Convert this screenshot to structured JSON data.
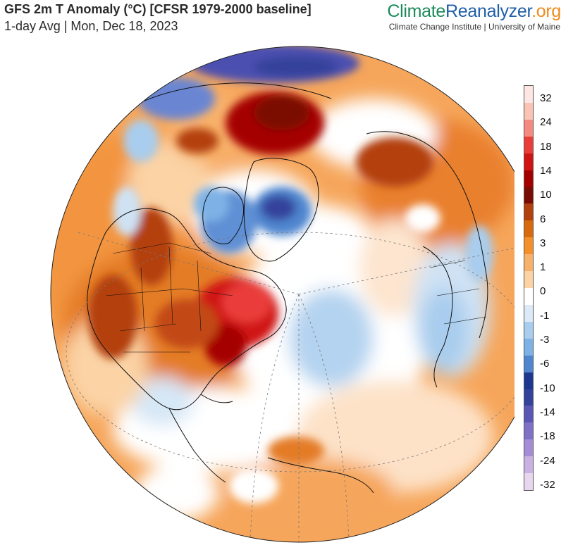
{
  "header": {
    "title": "GFS 2m T Anomaly (°C) [CFSR 1979-2000 baseline]",
    "subtitle": "1-day Avg | Mon, Dec 18, 2023"
  },
  "brand": {
    "part1": "Climate",
    "part2": "Reanalyzer",
    "part3": ".org",
    "tagline": "Climate Change Institute | University of Maine"
  },
  "legend": {
    "units": "°C",
    "ticks": [
      "32",
      "24",
      "18",
      "14",
      "10",
      "6",
      "3",
      "1",
      "0",
      "-1",
      "-3",
      "-6",
      "-10",
      "-14",
      "-18",
      "-24",
      "-32"
    ],
    "colors": [
      "#fde6e3",
      "#f9c4b4",
      "#f58a80",
      "#ea3d3a",
      "#d01414",
      "#a50000",
      "#7a0c06",
      "#b3410e",
      "#d9690d",
      "#f58f2a",
      "#f8b16a",
      "#fbd3a5",
      "#ffffff",
      "#dce9f6",
      "#a9cdee",
      "#7eb2e6",
      "#4f86cf",
      "#1e3790",
      "#35429b",
      "#5b57b5",
      "#7f72c6",
      "#a58dd5",
      "#c9b2e3",
      "#e8d6ef"
    ]
  },
  "map": {
    "projection": "orthographic",
    "view": "Northern Hemisphere, North Atlantic centered",
    "regions": [
      {
        "name": "Eastern North America / Great Lakes",
        "anomaly": "warm",
        "level": 14
      },
      {
        "name": "Western North America",
        "anomaly": "warm",
        "level": 6
      },
      {
        "name": "Greenland",
        "anomaly": "cold",
        "level": -10
      },
      {
        "name": "Siberian Arctic",
        "anomaly": "warm",
        "level": 14
      },
      {
        "name": "Northern Scandinavia / Barents",
        "anomaly": "cold",
        "level": -10
      },
      {
        "name": "Central North Atlantic",
        "anomaly": "cool",
        "level": -3
      },
      {
        "name": "Western Europe",
        "anomaly": "cool",
        "level": -3
      },
      {
        "name": "Gulf of Mexico / Caribbean",
        "anomaly": "cool",
        "level": -1
      },
      {
        "name": "Northern South America",
        "anomaly": "warm",
        "level": 3
      }
    ]
  }
}
